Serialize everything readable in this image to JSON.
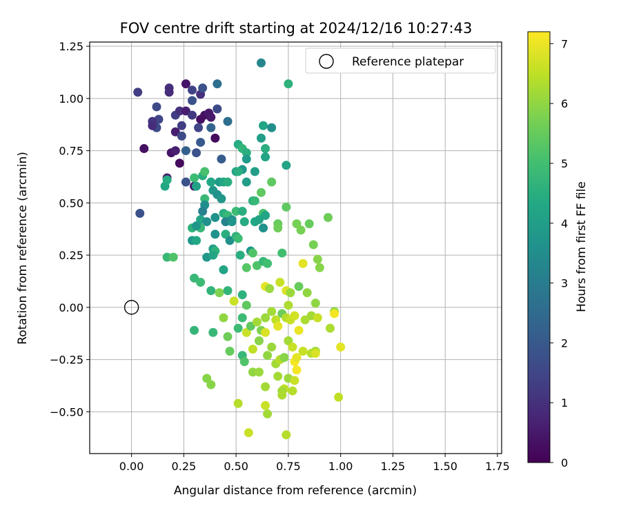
{
  "chart_data": {
    "type": "scatter",
    "title": "FOV centre drift starting at 2024/12/16 10:27:43",
    "xlabel": "Angular distance from reference (arcmin)",
    "ylabel": "Rotation from reference (arcmin)",
    "xlim": [
      -0.2,
      1.77
    ],
    "ylim": [
      -0.7,
      1.27
    ],
    "xticks": [
      0.0,
      0.25,
      0.5,
      0.75,
      1.0,
      1.25,
      1.5,
      1.75
    ],
    "xtick_labels": [
      "0.00",
      "0.25",
      "0.50",
      "0.75",
      "1.00",
      "1.25",
      "1.50",
      "1.75"
    ],
    "yticks": [
      -0.5,
      -0.25,
      0.0,
      0.25,
      0.5,
      0.75,
      1.0,
      1.25
    ],
    "ytick_labels": [
      "−0.50",
      "−0.25",
      "0.00",
      "0.25",
      "0.50",
      "0.75",
      "1.00",
      "1.25"
    ],
    "grid": true,
    "legend": {
      "position": "top-right",
      "entries": [
        "Reference platepar"
      ]
    },
    "reference_point": {
      "x": 0.0,
      "y": 0.0,
      "label": "Reference platepar"
    },
    "colorbar": {
      "label": "Hours from first FF file",
      "range": [
        0,
        7.2
      ],
      "ticks": [
        0,
        1,
        2,
        3,
        4,
        5,
        6,
        7
      ],
      "colormap": "viridis"
    },
    "series": [
      {
        "columns": [
          "x",
          "y",
          "hours"
        ],
        "points": [
          [
            0.03,
            1.03,
            1.3
          ],
          [
            0.18,
            1.05,
            1.0
          ],
          [
            0.18,
            1.03,
            0.9
          ],
          [
            0.26,
            1.07,
            0.4
          ],
          [
            0.29,
            1.04,
            1.4
          ],
          [
            0.33,
            1.02,
            1.0
          ],
          [
            0.34,
            1.05,
            1.8
          ],
          [
            0.41,
            1.07,
            2.6
          ],
          [
            0.12,
            0.96,
            1.6
          ],
          [
            0.13,
            0.9,
            1.5
          ],
          [
            0.1,
            0.89,
            1.1
          ],
          [
            0.12,
            0.86,
            1.6
          ],
          [
            0.1,
            0.87,
            0.9
          ],
          [
            0.21,
            0.92,
            1.3
          ],
          [
            0.23,
            0.94,
            1.0
          ],
          [
            0.26,
            0.94,
            0.6
          ],
          [
            0.29,
            0.99,
            1.8
          ],
          [
            0.29,
            0.92,
            1.2
          ],
          [
            0.33,
            0.9,
            0.3
          ],
          [
            0.35,
            0.92,
            0.3
          ],
          [
            0.37,
            0.93,
            0.5
          ],
          [
            0.38,
            0.91,
            0.5
          ],
          [
            0.41,
            0.95,
            1.6
          ],
          [
            0.32,
            0.86,
            1.5
          ],
          [
            0.38,
            0.86,
            2.3
          ],
          [
            0.46,
            0.89,
            2.6
          ],
          [
            0.21,
            0.84,
            0.6
          ],
          [
            0.24,
            0.82,
            1.6
          ],
          [
            0.24,
            0.87,
            1.3
          ],
          [
            0.4,
            0.81,
            0.2
          ],
          [
            0.06,
            0.76,
            0.3
          ],
          [
            0.19,
            0.74,
            0.4
          ],
          [
            0.21,
            0.75,
            0.6
          ],
          [
            0.26,
            0.75,
            2.2
          ],
          [
            0.33,
            0.79,
            2.0
          ],
          [
            0.31,
            0.74,
            1.8
          ],
          [
            0.23,
            0.69,
            0.2
          ],
          [
            0.43,
            0.71,
            2.1
          ],
          [
            0.17,
            0.62,
            0.6
          ],
          [
            0.26,
            0.6,
            1.8
          ],
          [
            0.3,
            0.58,
            0.5
          ],
          [
            0.04,
            0.45,
            1.8
          ],
          [
            0.62,
            1.17,
            3.3
          ],
          [
            0.75,
            1.07,
            4.6
          ],
          [
            0.63,
            0.87,
            4.2
          ],
          [
            0.67,
            0.86,
            3.5
          ],
          [
            0.62,
            0.81,
            4.0
          ],
          [
            0.51,
            0.78,
            4.4
          ],
          [
            0.53,
            0.76,
            4.7
          ],
          [
            0.55,
            0.74,
            4.5
          ],
          [
            0.64,
            0.76,
            4.5
          ],
          [
            0.55,
            0.71,
            3.9
          ],
          [
            0.64,
            0.72,
            4.2
          ],
          [
            0.53,
            0.66,
            3.8
          ],
          [
            0.5,
            0.65,
            4.2
          ],
          [
            0.51,
            0.65,
            4.5
          ],
          [
            0.59,
            0.65,
            4.0
          ],
          [
            0.74,
            0.68,
            4.2
          ],
          [
            0.16,
            0.58,
            4.3
          ],
          [
            0.17,
            0.61,
            4.4
          ],
          [
            0.3,
            0.62,
            4.9
          ],
          [
            0.34,
            0.63,
            4.5
          ],
          [
            0.35,
            0.65,
            5.1
          ],
          [
            0.31,
            0.58,
            4.1
          ],
          [
            0.38,
            0.6,
            4.3
          ],
          [
            0.39,
            0.56,
            3.8
          ],
          [
            0.41,
            0.54,
            3.6
          ],
          [
            0.42,
            0.6,
            3.9
          ],
          [
            0.43,
            0.52,
            3.8
          ],
          [
            0.44,
            0.6,
            4.3
          ],
          [
            0.46,
            0.6,
            4.5
          ],
          [
            0.55,
            0.6,
            4.0
          ],
          [
            0.62,
            0.55,
            5.4
          ],
          [
            0.67,
            0.6,
            5.4
          ],
          [
            0.35,
            0.52,
            4.8
          ],
          [
            0.35,
            0.49,
            3.5
          ],
          [
            0.34,
            0.46,
            3.2
          ],
          [
            0.4,
            0.43,
            3.6
          ],
          [
            0.44,
            0.45,
            4.5
          ],
          [
            0.46,
            0.44,
            4.8
          ],
          [
            0.48,
            0.42,
            3.6
          ],
          [
            0.5,
            0.46,
            4.9
          ],
          [
            0.53,
            0.46,
            4.5
          ],
          [
            0.58,
            0.51,
            4.5
          ],
          [
            0.59,
            0.51,
            4.8
          ],
          [
            0.63,
            0.45,
            5.1
          ],
          [
            0.64,
            0.44,
            4.2
          ],
          [
            0.74,
            0.48,
            5.4
          ],
          [
            0.29,
            0.38,
            4.6
          ],
          [
            0.33,
            0.38,
            4.8
          ],
          [
            0.33,
            0.42,
            4.2
          ],
          [
            0.31,
            0.39,
            3.8
          ],
          [
            0.36,
            0.41,
            3.6
          ],
          [
            0.45,
            0.41,
            3.2
          ],
          [
            0.48,
            0.41,
            3.7
          ],
          [
            0.54,
            0.41,
            4.4
          ],
          [
            0.59,
            0.41,
            4.3
          ],
          [
            0.61,
            0.42,
            4.2
          ],
          [
            0.63,
            0.38,
            3.6
          ],
          [
            0.7,
            0.4,
            5.5
          ],
          [
            0.79,
            0.4,
            5.7
          ],
          [
            0.85,
            0.4,
            5.5
          ],
          [
            0.94,
            0.43,
            5.6
          ],
          [
            0.29,
            0.32,
            3.8
          ],
          [
            0.31,
            0.32,
            4.3
          ],
          [
            0.39,
            0.28,
            4.0
          ],
          [
            0.4,
            0.27,
            4.6
          ],
          [
            0.4,
            0.35,
            3.6
          ],
          [
            0.45,
            0.35,
            4.5
          ],
          [
            0.47,
            0.32,
            3.6
          ],
          [
            0.5,
            0.34,
            4.6
          ],
          [
            0.51,
            0.33,
            4.9
          ],
          [
            0.57,
            0.27,
            3.8
          ],
          [
            0.58,
            0.26,
            5.2
          ],
          [
            0.7,
            0.38,
            5.6
          ],
          [
            0.72,
            0.26,
            5.0
          ],
          [
            0.81,
            0.37,
            5.7
          ],
          [
            0.87,
            0.3,
            5.7
          ],
          [
            0.89,
            0.23,
            5.9
          ],
          [
            0.9,
            0.19,
            5.9
          ],
          [
            0.17,
            0.24,
            4.8
          ],
          [
            0.2,
            0.24,
            5.2
          ],
          [
            0.36,
            0.24,
            3.8
          ],
          [
            0.39,
            0.25,
            4.2
          ],
          [
            0.52,
            0.25,
            4.5
          ],
          [
            0.55,
            0.19,
            5.3
          ],
          [
            0.6,
            0.2,
            5.2
          ],
          [
            0.63,
            0.22,
            4.8
          ],
          [
            0.65,
            0.21,
            5.0
          ],
          [
            0.82,
            0.21,
            6.9
          ],
          [
            0.3,
            0.14,
            4.8
          ],
          [
            0.33,
            0.12,
            4.9
          ],
          [
            0.38,
            0.08,
            4.7
          ],
          [
            0.42,
            0.07,
            5.8
          ],
          [
            0.44,
            0.18,
            4.2
          ],
          [
            0.46,
            0.08,
            4.7
          ],
          [
            0.49,
            0.03,
            6.6
          ],
          [
            0.53,
            0.06,
            4.6
          ],
          [
            0.55,
            0.01,
            5.4
          ],
          [
            0.64,
            0.1,
            6.9
          ],
          [
            0.66,
            0.09,
            6.1
          ],
          [
            0.71,
            0.12,
            6.6
          ],
          [
            0.74,
            0.08,
            6.8
          ],
          [
            0.75,
            0.01,
            6.3
          ],
          [
            0.76,
            0.07,
            6.1
          ],
          [
            0.8,
            0.1,
            5.5
          ],
          [
            0.84,
            0.07,
            6.0
          ],
          [
            0.88,
            0.02,
            6.0
          ],
          [
            0.3,
            -0.11,
            4.7
          ],
          [
            0.39,
            -0.12,
            4.8
          ],
          [
            0.44,
            -0.05,
            6.0
          ],
          [
            0.46,
            -0.14,
            5.6
          ],
          [
            0.47,
            -0.21,
            5.5
          ],
          [
            0.51,
            -0.1,
            4.9
          ],
          [
            0.53,
            -0.05,
            4.9
          ],
          [
            0.55,
            -0.12,
            6.6
          ],
          [
            0.57,
            -0.09,
            5.4
          ],
          [
            0.6,
            -0.07,
            6.2
          ],
          [
            0.62,
            -0.11,
            5.8
          ],
          [
            0.64,
            -0.05,
            6.1
          ],
          [
            0.67,
            -0.02,
            6.2
          ],
          [
            0.69,
            -0.06,
            6.5
          ],
          [
            0.7,
            -0.09,
            6.9
          ],
          [
            0.72,
            -0.03,
            5.6
          ],
          [
            0.74,
            -0.05,
            6.4
          ],
          [
            0.76,
            -0.06,
            6.6
          ],
          [
            0.78,
            -0.04,
            6.7
          ],
          [
            0.8,
            -0.11,
            7.0
          ],
          [
            0.83,
            -0.06,
            6.3
          ],
          [
            0.86,
            -0.04,
            6.2
          ],
          [
            0.89,
            -0.05,
            6.6
          ],
          [
            0.95,
            -0.1,
            6.3
          ],
          [
            0.97,
            -0.02,
            6.0
          ],
          [
            0.97,
            -0.03,
            7.1
          ],
          [
            0.53,
            -0.23,
            4.8
          ],
          [
            0.54,
            -0.26,
            5.2
          ],
          [
            0.58,
            -0.2,
            6.5
          ],
          [
            0.61,
            -0.16,
            5.9
          ],
          [
            0.64,
            -0.12,
            6.8
          ],
          [
            0.65,
            -0.23,
            6.0
          ],
          [
            0.67,
            -0.19,
            6.1
          ],
          [
            0.69,
            -0.27,
            6.2
          ],
          [
            0.71,
            -0.25,
            6.4
          ],
          [
            0.73,
            -0.24,
            5.9
          ],
          [
            0.75,
            -0.16,
            6.2
          ],
          [
            0.77,
            -0.19,
            6.6
          ],
          [
            0.78,
            -0.26,
            7.1
          ],
          [
            0.79,
            -0.24,
            6.9
          ],
          [
            0.82,
            -0.21,
            6.6
          ],
          [
            0.86,
            -0.22,
            6.4
          ],
          [
            0.88,
            -0.21,
            6.2
          ],
          [
            0.88,
            -0.22,
            6.8
          ],
          [
            1.0,
            -0.19,
            6.9
          ],
          [
            0.36,
            -0.34,
            5.9
          ],
          [
            0.38,
            -0.37,
            5.9
          ],
          [
            0.58,
            -0.31,
            6.0
          ],
          [
            0.61,
            -0.31,
            6.1
          ],
          [
            0.64,
            -0.38,
            6.2
          ],
          [
            0.7,
            -0.33,
            6.2
          ],
          [
            0.73,
            -0.39,
            6.5
          ],
          [
            0.75,
            -0.34,
            6.1
          ],
          [
            0.78,
            -0.35,
            6.6
          ],
          [
            0.79,
            -0.3,
            7.1
          ],
          [
            0.51,
            -0.46,
            6.4
          ],
          [
            0.64,
            -0.47,
            6.6
          ],
          [
            0.65,
            -0.51,
            6.2
          ],
          [
            0.72,
            -0.4,
            6.2
          ],
          [
            0.72,
            -0.42,
            6.3
          ],
          [
            0.77,
            -0.4,
            6.4
          ],
          [
            0.99,
            -0.43,
            6.5
          ],
          [
            0.56,
            -0.6,
            6.6
          ],
          [
            0.74,
            -0.61,
            6.4
          ]
        ]
      }
    ]
  }
}
